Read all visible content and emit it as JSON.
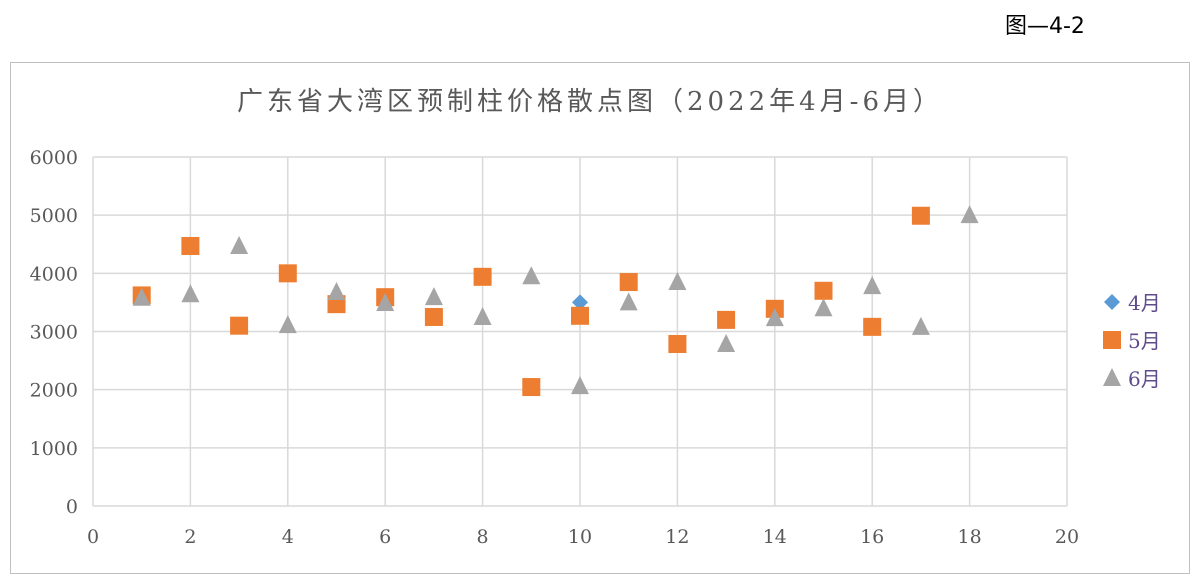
{
  "figure_label": "图—4-2",
  "chart_data": {
    "type": "scatter",
    "title": "广东省大湾区预制柱价格散点图（2022年4月-6月）",
    "xlabel": "",
    "ylabel": "",
    "xlim": [
      0,
      20
    ],
    "ylim": [
      0,
      6000
    ],
    "xticks": [
      0,
      2,
      4,
      6,
      8,
      10,
      12,
      14,
      16,
      18,
      20
    ],
    "yticks": [
      0,
      1000,
      2000,
      3000,
      4000,
      5000,
      6000
    ],
    "grid": true,
    "legend": "right",
    "series": [
      {
        "name": "4月",
        "marker": "diamond",
        "color": "#5b9bd5",
        "points": [
          [
            1,
            3620
          ],
          [
            2,
            4470
          ],
          [
            3,
            3100
          ],
          [
            4,
            4000
          ],
          [
            5,
            3470
          ],
          [
            6,
            3590
          ],
          [
            7,
            3250
          ],
          [
            8,
            3940
          ],
          [
            9,
            2045
          ],
          [
            10,
            3500
          ],
          [
            11,
            3850
          ],
          [
            12,
            2785
          ],
          [
            13,
            3200
          ],
          [
            14,
            3390
          ],
          [
            15,
            3700
          ],
          [
            16,
            3080
          ],
          [
            17,
            4990
          ]
        ]
      },
      {
        "name": "5月",
        "marker": "square",
        "color": "#ed7d31",
        "points": [
          [
            1,
            3620
          ],
          [
            2,
            4470
          ],
          [
            3,
            3100
          ],
          [
            4,
            4000
          ],
          [
            5,
            3470
          ],
          [
            6,
            3590
          ],
          [
            7,
            3250
          ],
          [
            8,
            3940
          ],
          [
            9,
            2045
          ],
          [
            10,
            3270
          ],
          [
            11,
            3850
          ],
          [
            12,
            2785
          ],
          [
            13,
            3200
          ],
          [
            14,
            3390
          ],
          [
            15,
            3700
          ],
          [
            16,
            3080
          ],
          [
            17,
            4990
          ]
        ]
      },
      {
        "name": "6月",
        "marker": "triangle",
        "color": "#a5a5a5",
        "points": [
          [
            1,
            3580
          ],
          [
            2,
            3640
          ],
          [
            3,
            4470
          ],
          [
            4,
            3110
          ],
          [
            5,
            3680
          ],
          [
            6,
            3490
          ],
          [
            7,
            3590
          ],
          [
            8,
            3250
          ],
          [
            9,
            3950
          ],
          [
            10,
            2060
          ],
          [
            11,
            3500
          ],
          [
            12,
            3850
          ],
          [
            13,
            2785
          ],
          [
            14,
            3230
          ],
          [
            15,
            3400
          ],
          [
            16,
            3780
          ],
          [
            17,
            3080
          ],
          [
            18,
            5000
          ]
        ]
      }
    ]
  }
}
